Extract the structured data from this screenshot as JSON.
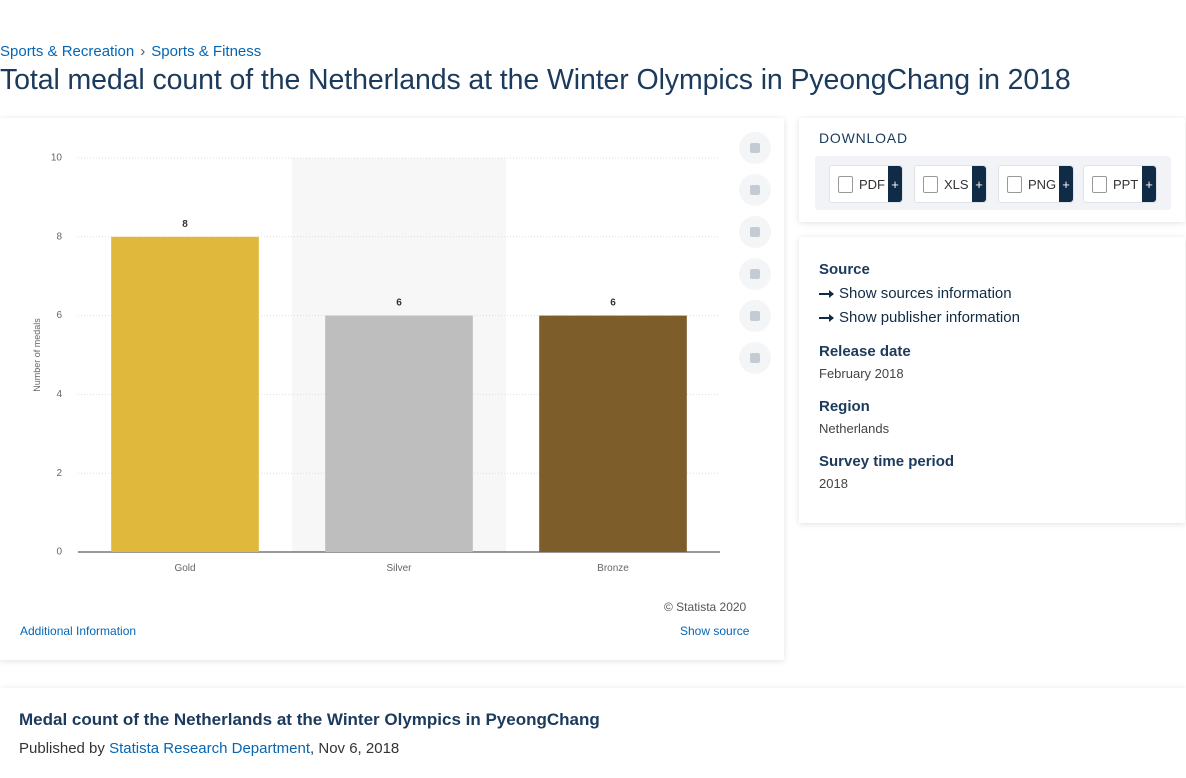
{
  "breadcrumb": [
    "Sports & Recreation",
    "Sports & Fitness"
  ],
  "page_title": "Total medal count of the Netherlands at the Winter Olympics in PyeongChang in 2018",
  "chart_data": {
    "type": "bar",
    "categories": [
      "Gold",
      "Silver",
      "Bronze"
    ],
    "values": [
      8,
      6,
      6
    ],
    "colors": [
      "#dfb83c",
      "#bebebe",
      "#7d5e2b"
    ],
    "y_label": "Number of medals",
    "ylim": [
      0,
      10
    ],
    "yticks": [
      0,
      2,
      4,
      6,
      8,
      10
    ],
    "grid": true
  },
  "chart_footer": {
    "copyright": "© Statista 2020",
    "additional_info": "Additional Information",
    "show_source": "Show source"
  },
  "download": {
    "heading": "DOWNLOAD",
    "buttons": [
      {
        "label": "PDF",
        "extra": "+"
      },
      {
        "label": "XLS",
        "extra": "+"
      },
      {
        "label": "PNG",
        "extra": "+"
      },
      {
        "label": "PPT",
        "extra": "+"
      }
    ]
  },
  "details": {
    "source_heading": "Source",
    "sources_link": "Show sources information",
    "publisher_link": "Show publisher information",
    "release_heading": "Release date",
    "release_value": "February 2018",
    "region_heading": "Region",
    "region_value": "Netherlands",
    "period_heading": "Survey time period",
    "period_value": "2018"
  },
  "description": {
    "title": "Medal count of the Netherlands at the Winter Olympics in PyeongChang",
    "published_by": "Published by",
    "publisher": "Statista Research Department",
    "date": "Nov 6, 2018"
  }
}
